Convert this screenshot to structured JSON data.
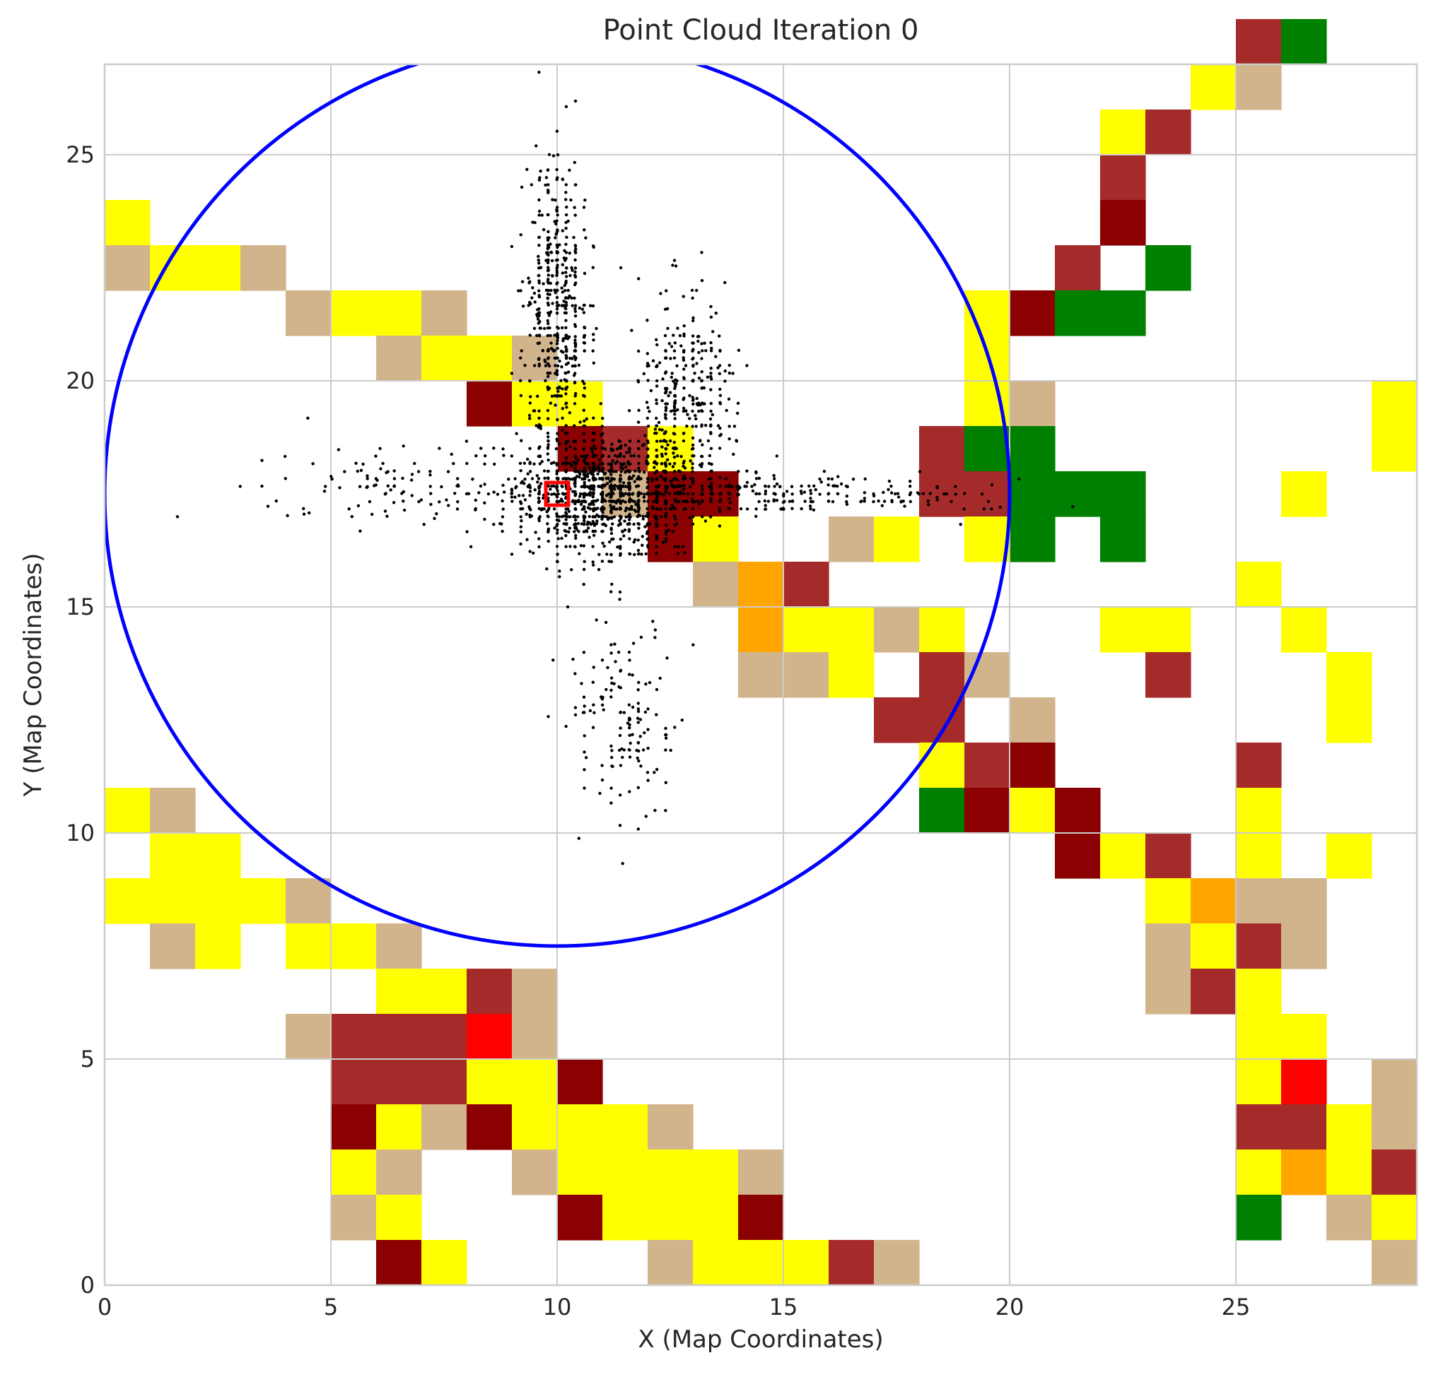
{
  "chart_data": {
    "type": "heatmap",
    "title": "Point Cloud Iteration 0",
    "xlabel": "X (Map Coordinates)",
    "ylabel": "Y (Map Coordinates)",
    "xlim": [
      0,
      29
    ],
    "ylim": [
      0,
      27
    ],
    "xticks": [
      0,
      5,
      10,
      15,
      20,
      25
    ],
    "yticks": [
      0,
      5,
      10,
      15,
      20,
      25
    ],
    "grid": true,
    "palette": {
      "Y": "#ffff00",
      "T": "#d2b48c",
      "B": "#a52a2a",
      "D": "#8b0000",
      "G": "#008000",
      "O": "#ffa500",
      "R": "#ff0000"
    },
    "grid_rows_top_to_bottom": [
      ".........................BG..",
      "........................YT...",
      "......................YB.....",
      "......................B......",
      "Y.....................D......",
      "TYYT.................B.G.....",
      "....TYYT...........YDGG......",
      "......TYYT.........Y.........",
      "........DYY........YT.......Y",
      "..........DBY.....BGG.......Y",
      "...........TDD....BBGGG...Y..",
      "............DY..TY.YG.G......",
      ".............TOB.........Y...",
      "..............OYYTY...YY..Y..",
      "..............TTY.BT...B...Y.",
      ".................BB.T......Y.",
      "..................YBD....B...",
      "YT................GDYD...Y...",
      ".YY..................DYB.Y.Y.",
      "YYYYT..................YOTT..",
      ".TY.YYT................TYBT..",
      "......YYBT.............TBY...",
      "....TBBBRT...............YY..",
      ".....BBBYYD..............YR.T.",
      ".....DYTDYYYT............BBYT",
      ".....YT..TYYYYT..........YOYB",
      ".....TY...DYYYD..........G.TY",
      "......DY....TYYYBT..........T"
    ],
    "robot_position": [
      10,
      17.5
    ],
    "circle": {
      "center": [
        10,
        17.5
      ],
      "radius": 10,
      "color": "#0000ff"
    },
    "points": {
      "color": "#000000",
      "description_clusters": [
        {
          "center": [
            11,
            17.5
          ],
          "spread": [
            1.5,
            1.0
          ],
          "count": 1200
        },
        {
          "center": [
            10,
            21.5
          ],
          "spread": [
            0.6,
            2.8
          ],
          "count": 500
        },
        {
          "center": [
            12.8,
            19.5
          ],
          "spread": [
            0.8,
            2.0
          ],
          "count": 350
        },
        {
          "center": [
            15,
            17.5
          ],
          "spread": [
            3.5,
            0.35
          ],
          "count": 250
        },
        {
          "center": [
            6.5,
            17.7
          ],
          "spread": [
            2.5,
            0.8
          ],
          "count": 120
        },
        {
          "center": [
            11.5,
            12.5
          ],
          "spread": [
            1.0,
            2.0
          ],
          "count": 150
        }
      ]
    }
  }
}
